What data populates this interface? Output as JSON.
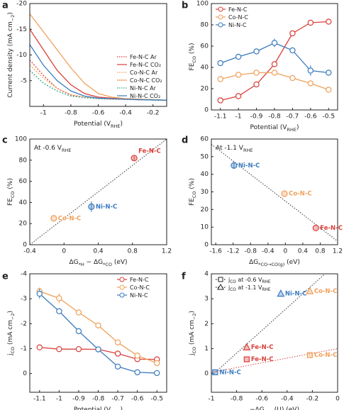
{
  "chart_data": [
    {
      "type": "line",
      "panel": "a",
      "xlabel": [
        "Potential (V",
        "RHE",
        ")"
      ],
      "ylabel": [
        "Current density (mA cm",
        "−2",
        ")"
      ],
      "x": [
        -1.1,
        -1.0,
        -0.9,
        -0.8,
        -0.7,
        -0.6,
        -0.5,
        -0.4,
        -0.3,
        -0.2,
        -0.1
      ],
      "xlim": [
        -1.1,
        -0.1
      ],
      "xticks": [
        -1.0,
        -0.8,
        -0.6,
        -0.4,
        -0.2
      ],
      "ylim": [
        0,
        -20
      ],
      "yticks": [
        -5,
        -10,
        -15,
        -20
      ],
      "legend": "lower right",
      "series": [
        {
          "name": [
            "Fe-N-C Ar"
          ],
          "color": "#d9403a",
          "dashed": true,
          "values": [
            -9,
            -6,
            -3.5,
            -2.2,
            -1.7,
            -1.5,
            -1.4,
            -1.35,
            -1.3,
            -1.25,
            -1.2
          ]
        },
        {
          "name": [
            "Fe-N-C CO₂"
          ],
          "color": "#d9403a",
          "dashed": false,
          "values": [
            -15,
            -11,
            -7,
            -4.2,
            -2.5,
            -1.8,
            -1.6,
            -1.5,
            -1.4,
            -1.3,
            -1.2
          ]
        },
        {
          "name": [
            "Co-N-C Ar"
          ],
          "color": "#f0a05a",
          "dashed": true,
          "values": [
            -8,
            -5.5,
            -3.5,
            -2.3,
            -1.8,
            -1.6,
            -1.5,
            -1.4,
            -1.35,
            -1.3,
            -1.2
          ]
        },
        {
          "name": [
            "Co-N-C CO₂"
          ],
          "color": "#f0a05a",
          "dashed": false,
          "values": [
            -18,
            -14.5,
            -11,
            -7.5,
            -4.5,
            -2.5,
            -1.8,
            -1.5,
            -1.4,
            -1.3,
            -1.2
          ]
        },
        {
          "name": [
            "Ni-N-C Ar"
          ],
          "color": "#3aa58a",
          "dashed": true,
          "values": [
            -7,
            -4.5,
            -3,
            -2,
            -1.7,
            -1.5,
            -1.45,
            -1.4,
            -1.3,
            -1.25,
            -1.2
          ]
        },
        {
          "name": [
            "Ni-N-C CO₂"
          ],
          "color": "#3b7bbf",
          "dashed": false,
          "values": [
            -12,
            -8,
            -5,
            -3,
            -2,
            -1.6,
            -1.5,
            -1.4,
            -1.3,
            -1.25,
            -1.2
          ]
        }
      ]
    },
    {
      "type": "line",
      "panel": "b",
      "markers": true,
      "xlabel": [
        "Potential (V",
        "RHE",
        ")"
      ],
      "ylabel": [
        "FE",
        "CO",
        " (%)"
      ],
      "x": [
        -1.1,
        -1.0,
        -0.9,
        -0.8,
        -0.7,
        -0.6,
        -0.5
      ],
      "xlim": [
        -1.15,
        -0.45
      ],
      "xticks": [
        -1.1,
        -1.0,
        -0.9,
        -0.8,
        -0.7,
        -0.6,
        -0.5
      ],
      "ylim": [
        0,
        100
      ],
      "yticks": [
        0,
        20,
        40,
        60,
        80,
        100
      ],
      "legend": "upper left",
      "series": [
        {
          "name": [
            "Fe-N-C"
          ],
          "color": "#d9403a",
          "values": [
            9,
            13,
            24,
            43,
            72,
            82,
            83
          ]
        },
        {
          "name": [
            "Co-N-C"
          ],
          "color": "#f0a05a",
          "values": [
            29,
            33,
            35,
            35,
            30,
            25,
            19
          ]
        },
        {
          "name": [
            "Ni-N-C"
          ],
          "color": "#3b7bbf",
          "values": [
            44,
            50,
            55,
            63,
            56,
            37,
            35
          ],
          "errors": [
            2,
            2,
            2,
            4,
            2,
            5,
            2
          ]
        }
      ]
    },
    {
      "type": "scatter",
      "panel": "c",
      "xlabel": [
        "ΔG",
        "*H",
        " − ΔG",
        "*CO",
        " (eV)"
      ],
      "ylabel": [
        "FE",
        "CO",
        " (%)"
      ],
      "annotation": [
        "At -0.6 V",
        "RHE"
      ],
      "xlim": [
        -0.4,
        1.2
      ],
      "xticks": [
        -0.4,
        0.0,
        0.4,
        0.8,
        1.2
      ],
      "ylim": [
        0,
        100
      ],
      "yticks": [
        0,
        20,
        40,
        60,
        80,
        100
      ],
      "lines": [
        {
          "color": "#333333",
          "x": [
            -0.4,
            1.2
          ],
          "values": [
            0,
            100
          ]
        }
      ],
      "series": [
        {
          "marker": "circle",
          "x": [
            -0.12,
            0.32,
            0.82
          ],
          "values": [
            25,
            36,
            82
          ],
          "errors": [
            0,
            5,
            2
          ],
          "colors": [
            "#f0a05a",
            "#3b7bbf",
            "#d9403a"
          ],
          "labels": [
            "Co-N-C",
            "Ni-N-C",
            "Fe-N-C"
          ]
        }
      ]
    },
    {
      "type": "scatter",
      "panel": "d",
      "xlabel": [
        "ΔG",
        "*CO→CO(g)",
        " (eV)"
      ],
      "ylabel": [
        "FE",
        "CO",
        " (%)"
      ],
      "annotation": [
        "At -1.1 V",
        "RHE"
      ],
      "xlim": [
        -1.7,
        1.2
      ],
      "xticks": [
        -1.6,
        -1.2,
        -0.8,
        -0.4,
        0.0,
        0.4,
        0.8,
        1.2
      ],
      "ylim": [
        0,
        60
      ],
      "yticks": [
        0,
        10,
        20,
        30,
        40,
        50,
        60
      ],
      "lines": [
        {
          "color": "#333333",
          "x": [
            -1.7,
            1.2
          ],
          "values": [
            57,
            2
          ]
        }
      ],
      "series": [
        {
          "marker": "circle",
          "x": [
            -1.18,
            -0.02,
            0.7
          ],
          "values": [
            45,
            29,
            9.5
          ],
          "errors": [
            2,
            0,
            0
          ],
          "colors": [
            "#3b7bbf",
            "#f0a05a",
            "#d9403a"
          ],
          "labels": [
            "Ni-N-C",
            "Co-N-C",
            "Fe-N-C"
          ]
        }
      ]
    },
    {
      "type": "line",
      "panel": "e",
      "markers": true,
      "xlabel": [
        "Potential (V",
        "RHE",
        ")"
      ],
      "ylabel": [
        "j",
        "CO",
        " (mA cm",
        "−2",
        ")"
      ],
      "x": [
        -1.1,
        -1.0,
        -0.9,
        -0.8,
        -0.7,
        -0.6,
        -0.5
      ],
      "xlim": [
        -1.15,
        -0.45
      ],
      "xticks": [
        -1.1,
        -1.0,
        -0.9,
        -0.8,
        -0.7,
        -0.6,
        -0.5
      ],
      "ylim": [
        0.75,
        -4
      ],
      "yticks": [
        0,
        -1,
        -2,
        -3,
        -4
      ],
      "legend": "upper right",
      "series": [
        {
          "name": [
            "Fe-N-C"
          ],
          "color": "#d9403a",
          "values": [
            -1.05,
            -0.98,
            -0.98,
            -0.97,
            -0.8,
            -0.58,
            -0.57
          ]
        },
        {
          "name": [
            "Co-N-C"
          ],
          "color": "#f0a05a",
          "values": [
            -3.3,
            -3.02,
            -2.45,
            -1.93,
            -1.25,
            -0.72,
            -0.42
          ],
          "errors": [
            0.15,
            0.2,
            0,
            0,
            0,
            0,
            0
          ]
        },
        {
          "name": [
            "Ni-N-C"
          ],
          "color": "#3b7bbf",
          "values": [
            -3.2,
            -2.5,
            -1.7,
            -0.97,
            -0.28,
            -0.05,
            -0.02
          ],
          "errors": [
            0.2,
            0,
            0,
            0,
            0,
            0,
            0
          ]
        }
      ]
    },
    {
      "type": "scatter",
      "panel": "f",
      "xlabel": [
        "−ΔG",
        "max",
        "(U) (eV)"
      ],
      "ylabel": [
        "j",
        "CO",
        " (mA cm",
        "−2",
        ")"
      ],
      "xlim": [
        -1.0,
        0.0
      ],
      "xticks": [
        -1.0,
        -0.8,
        -0.6,
        -0.4,
        -0.2,
        0.0
      ],
      "ylim": [
        -0.75,
        4
      ],
      "yticks": [
        0,
        1,
        2,
        3,
        4
      ],
      "legend": "upper left",
      "lines": [
        {
          "color": "#333333",
          "x": [
            -0.98,
            -0.1
          ],
          "values": [
            0,
            4
          ]
        },
        {
          "color": "#d9403a",
          "x": [
            -1.0,
            0.0
          ],
          "values": [
            0.05,
            1.0
          ]
        }
      ],
      "series": [
        {
          "name": [
            "j",
            "CO",
            " at -0.6 V",
            "RHE"
          ],
          "marker": "square",
          "x": [
            -0.97,
            -0.72,
            -0.22
          ],
          "values": [
            0.05,
            0.57,
            0.74
          ],
          "colors": [
            "#3b7bbf",
            "#d9403a",
            "#f0a05a"
          ],
          "labels": [
            "Ni-N-C",
            "Fe-N-C",
            "Co-N-C"
          ]
        },
        {
          "name": [
            "j",
            "CO",
            " at -1.1 V",
            "RHE"
          ],
          "marker": "triangle",
          "x": [
            -0.45,
            -0.72,
            -0.22
          ],
          "values": [
            3.2,
            1.05,
            3.3
          ],
          "colors": [
            "#3b7bbf",
            "#d9403a",
            "#f0a05a"
          ],
          "labels": [
            "Ni-N-C",
            "Fe-N-C",
            "Co-N-C"
          ]
        }
      ]
    }
  ]
}
